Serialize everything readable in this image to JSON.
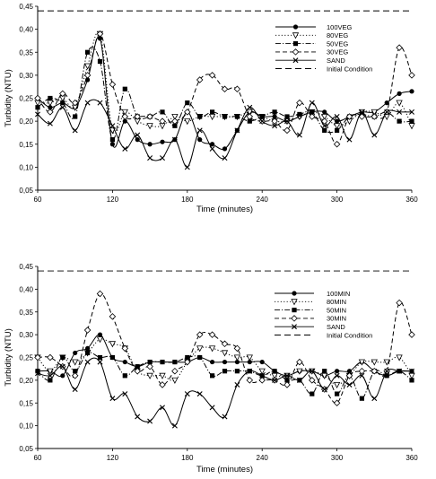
{
  "chart_data": [
    {
      "type": "line",
      "xlabel": "Time (minutes)",
      "ylabel": "Turbidity (NTU)",
      "xlim": [
        60,
        360
      ],
      "ylim": [
        0.05,
        0.45
      ],
      "xticks": [
        "60",
        "120",
        "180",
        "240",
        "300",
        "360"
      ],
      "yticks": [
        "0,05",
        "0,10",
        "0,15",
        "0,20",
        "0,25",
        "0,30",
        "0,35",
        "0,40",
        "0,45"
      ],
      "legend_position": "top-right",
      "x": [
        60,
        70,
        80,
        90,
        100,
        110,
        120,
        130,
        140,
        150,
        160,
        170,
        180,
        190,
        200,
        210,
        220,
        230,
        240,
        250,
        260,
        270,
        280,
        290,
        300,
        310,
        320,
        330,
        340,
        350,
        360
      ],
      "series": [
        {
          "name": "100VEG",
          "marker": "circle-filled",
          "dash": "solid",
          "values": [
            0.25,
            0.23,
            0.24,
            0.23,
            0.29,
            0.38,
            0.15,
            0.2,
            0.16,
            0.15,
            0.155,
            0.16,
            0.22,
            0.16,
            0.15,
            0.14,
            0.18,
            0.22,
            0.21,
            0.21,
            0.2,
            0.21,
            0.22,
            0.22,
            0.2,
            0.21,
            0.22,
            0.22,
            0.24,
            0.26,
            0.265
          ]
        },
        {
          "name": "80VEG",
          "marker": "triangle-down-open",
          "dash": "dot",
          "values": [
            0.24,
            0.24,
            0.25,
            0.23,
            0.32,
            0.39,
            0.18,
            0.22,
            0.2,
            0.19,
            0.19,
            0.21,
            0.2,
            0.21,
            0.21,
            0.21,
            0.21,
            0.22,
            0.21,
            0.2,
            0.2,
            0.21,
            0.22,
            0.21,
            0.19,
            0.2,
            0.22,
            0.22,
            0.21,
            0.24,
            0.19
          ]
        },
        {
          "name": "50VEG",
          "marker": "square-filled",
          "dash": "dashdot",
          "values": [
            0.23,
            0.25,
            0.24,
            0.21,
            0.35,
            0.33,
            0.16,
            0.27,
            0.21,
            0.21,
            0.22,
            0.19,
            0.24,
            0.21,
            0.22,
            0.21,
            0.21,
            0.2,
            0.21,
            0.22,
            0.21,
            0.215,
            0.22,
            0.18,
            0.18,
            0.21,
            0.215,
            0.21,
            0.22,
            0.2,
            0.2
          ]
        },
        {
          "name": "30VEG",
          "marker": "diamond-open",
          "dash": "dash",
          "values": [
            0.25,
            0.22,
            0.26,
            0.24,
            0.3,
            0.39,
            0.28,
            0.21,
            0.21,
            0.21,
            0.2,
            0.2,
            0.22,
            0.29,
            0.3,
            0.27,
            0.27,
            0.21,
            0.2,
            0.2,
            0.18,
            0.24,
            0.21,
            0.2,
            0.15,
            0.21,
            0.21,
            0.21,
            0.22,
            0.36,
            0.3
          ]
        },
        {
          "name": "SAND",
          "marker": "x",
          "dash": "solid",
          "values": [
            0.215,
            0.195,
            0.23,
            0.18,
            0.24,
            0.24,
            0.19,
            0.14,
            0.17,
            0.12,
            0.12,
            0.16,
            0.1,
            0.18,
            0.14,
            0.12,
            0.18,
            0.23,
            0.2,
            0.19,
            0.2,
            0.17,
            0.24,
            0.19,
            0.21,
            0.16,
            0.22,
            0.17,
            0.22,
            0.22,
            0.22
          ]
        },
        {
          "name": "Initial Condition",
          "marker": "none",
          "dash": "longdash",
          "x": [
            60,
            360
          ],
          "values": [
            0.44,
            0.44
          ]
        }
      ]
    },
    {
      "type": "line",
      "xlabel": "Time (minutes)",
      "ylabel": "Turbidity (NTU)",
      "xlim": [
        60,
        360
      ],
      "ylim": [
        0.05,
        0.45
      ],
      "xticks": [
        "60",
        "120",
        "180",
        "240",
        "300",
        "360"
      ],
      "yticks": [
        "0,05",
        "0,10",
        "0,15",
        "0,20",
        "0,25",
        "0,30",
        "0,35",
        "0,40",
        "0,45"
      ],
      "legend_position": "top-right",
      "x": [
        60,
        70,
        80,
        90,
        100,
        110,
        120,
        130,
        140,
        150,
        160,
        170,
        180,
        190,
        200,
        210,
        220,
        230,
        240,
        250,
        260,
        270,
        280,
        290,
        300,
        310,
        320,
        330,
        340,
        350,
        360
      ],
      "series": [
        {
          "name": "100MIN",
          "marker": "circle-filled",
          "dash": "solid",
          "values": [
            0.22,
            0.22,
            0.21,
            0.26,
            0.27,
            0.3,
            0.25,
            0.24,
            0.23,
            0.24,
            0.24,
            0.24,
            0.24,
            0.25,
            0.24,
            0.24,
            0.24,
            0.24,
            0.24,
            0.22,
            0.21,
            0.22,
            0.22,
            0.21,
            0.22,
            0.22,
            0.24,
            0.22,
            0.21,
            0.22,
            0.22
          ]
        },
        {
          "name": "80MIN",
          "marker": "triangle-down-open",
          "dash": "dot",
          "values": [
            0.25,
            0.22,
            0.25,
            0.24,
            0.26,
            0.29,
            0.28,
            0.27,
            0.22,
            0.21,
            0.21,
            0.2,
            0.24,
            0.27,
            0.27,
            0.26,
            0.25,
            0.25,
            0.22,
            0.21,
            0.21,
            0.22,
            0.22,
            0.21,
            0.19,
            0.21,
            0.24,
            0.24,
            0.24,
            0.25,
            0.21
          ]
        },
        {
          "name": "50MIN",
          "marker": "square-filled",
          "dash": "dashdot",
          "values": [
            0.22,
            0.2,
            0.25,
            0.22,
            0.26,
            0.25,
            0.25,
            0.21,
            0.23,
            0.24,
            0.24,
            0.24,
            0.25,
            0.25,
            0.21,
            0.22,
            0.22,
            0.22,
            0.21,
            0.22,
            0.2,
            0.2,
            0.17,
            0.22,
            0.17,
            0.21,
            0.16,
            0.22,
            0.21,
            0.22,
            0.2
          ]
        },
        {
          "name": "30MIN",
          "marker": "diamond-open",
          "dash": "dash",
          "values": [
            0.25,
            0.25,
            0.23,
            0.21,
            0.31,
            0.39,
            0.34,
            0.27,
            0.22,
            0.23,
            0.19,
            0.22,
            0.24,
            0.3,
            0.3,
            0.28,
            0.27,
            0.2,
            0.2,
            0.2,
            0.19,
            0.24,
            0.2,
            0.18,
            0.15,
            0.21,
            0.22,
            0.22,
            0.22,
            0.37,
            0.3
          ]
        },
        {
          "name": "SAND",
          "marker": "x",
          "dash": "solid",
          "values": [
            0.215,
            0.21,
            0.23,
            0.18,
            0.24,
            0.24,
            0.16,
            0.17,
            0.12,
            0.11,
            0.14,
            0.1,
            0.17,
            0.17,
            0.14,
            0.12,
            0.19,
            0.22,
            0.21,
            0.2,
            0.21,
            0.2,
            0.22,
            0.18,
            0.21,
            0.19,
            0.21,
            0.16,
            0.22,
            0.22,
            0.22
          ]
        },
        {
          "name": "Initial Condition",
          "marker": "none",
          "dash": "longdash",
          "x": [
            60,
            360
          ],
          "values": [
            0.44,
            0.44
          ]
        }
      ]
    }
  ]
}
